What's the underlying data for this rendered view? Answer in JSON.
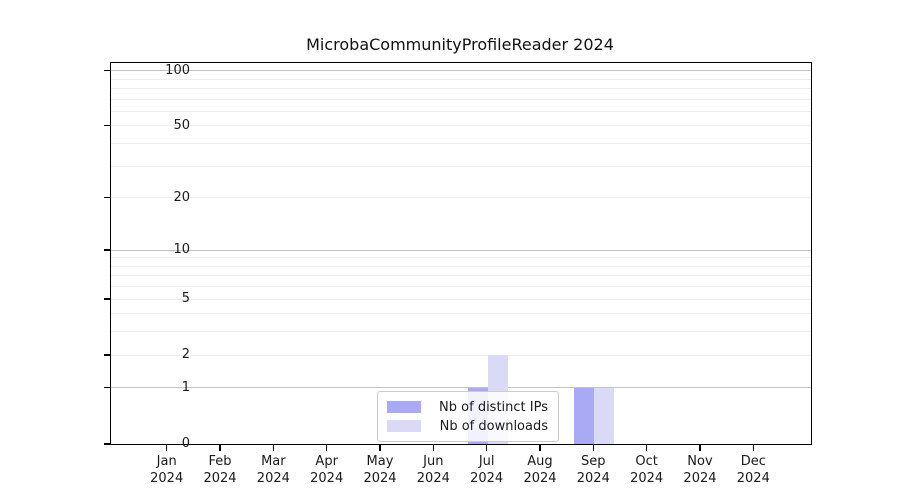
{
  "title": "MicrobaCommunityProfileReader 2024",
  "chart_data": {
    "type": "bar",
    "title": "MicrobaCommunityProfileReader 2024",
    "xlabel": "",
    "ylabel": "",
    "categories": [
      "Jan 2024",
      "Feb 2024",
      "Mar 2024",
      "Apr 2024",
      "May 2024",
      "Jun 2024",
      "Jul 2024",
      "Aug 2024",
      "Sep 2024",
      "Oct 2024",
      "Nov 2024",
      "Dec 2024"
    ],
    "series": [
      {
        "name": "Nb of distinct IPs",
        "color": "#a9a9f4",
        "values": [
          0,
          0,
          0,
          0,
          0,
          0,
          1,
          0,
          1,
          0,
          0,
          0
        ]
      },
      {
        "name": "Nb of downloads",
        "color": "#dadaf7",
        "values": [
          0,
          0,
          0,
          0,
          0,
          0,
          2,
          0,
          1,
          0,
          0,
          0
        ]
      }
    ],
    "y_scale": "log1p",
    "ylim": [
      0,
      110
    ],
    "y_ticks": [
      0,
      1,
      2,
      5,
      10,
      20,
      50,
      100
    ],
    "y_minor_gridlines": [
      2,
      3,
      4,
      5,
      6,
      7,
      8,
      9,
      20,
      30,
      40,
      50,
      60,
      70,
      80,
      90
    ],
    "y_major_gridlines": [
      1,
      10,
      100
    ],
    "grid": true,
    "legend_position": "lower center"
  },
  "legend": {
    "items": [
      {
        "label": "Nb of distinct IPs",
        "color": "#a9a9f4"
      },
      {
        "label": "Nb of downloads",
        "color": "#dadaf7"
      }
    ]
  },
  "colors": {
    "distinct_ips": "#a9a9f4",
    "downloads": "#dadaf7",
    "major_grid": "#c3c3c3",
    "minor_grid": "#ededed",
    "axis": "#000000"
  }
}
